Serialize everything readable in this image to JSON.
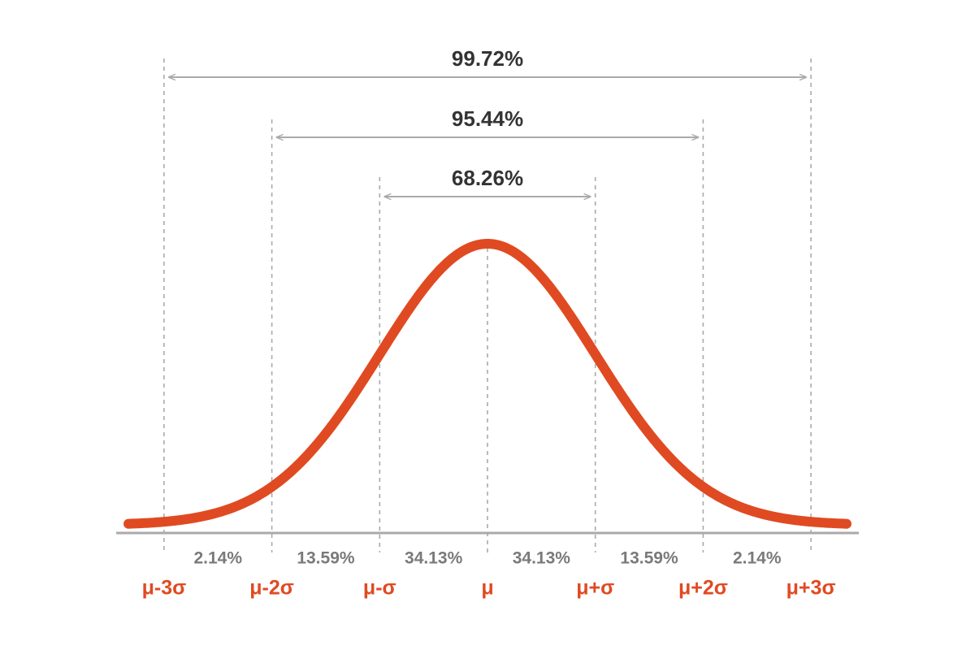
{
  "spans": [
    "68.26%",
    "95.44%",
    "99.72%"
  ],
  "segments": [
    "2.14%",
    "13.59%",
    "34.13%",
    "34.13%",
    "13.59%",
    "2.14%"
  ],
  "markers": [
    "μ-3σ",
    "μ-2σ",
    "μ-σ",
    "μ",
    "μ+σ",
    "μ+2σ",
    "μ+3σ"
  ]
}
